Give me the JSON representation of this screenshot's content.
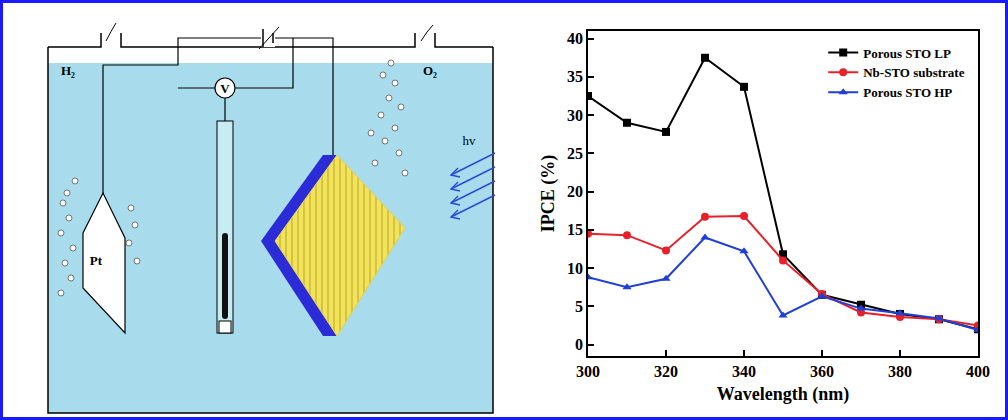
{
  "diagram": {
    "gas_left": "H₂",
    "gas_right": "O₂",
    "cathode": "Pt",
    "meter": "V",
    "light": "hv"
  },
  "chart_data": {
    "type": "line",
    "x_label": "Wavelength (nm)",
    "y_label": "IPCE (%)",
    "x": [
      300,
      310,
      320,
      330,
      340,
      350,
      360,
      370,
      380,
      390,
      400
    ],
    "series": [
      {
        "name": "Porous STO LP",
        "color": "#000000",
        "marker": "square",
        "line_style": "solid",
        "values": [
          32.5,
          29.0,
          27.8,
          37.5,
          33.7,
          11.8,
          6.5,
          5.2,
          4.0,
          3.3,
          2.0
        ]
      },
      {
        "name": "Nb-STO substrate",
        "color": "#e8202a",
        "marker": "circle",
        "line_style": "solid",
        "values": [
          14.5,
          14.3,
          12.3,
          16.7,
          16.8,
          11.0,
          6.6,
          4.2,
          3.6,
          3.3,
          2.5
        ]
      },
      {
        "name": "Porous STO HP",
        "color": "#1f3fd8",
        "marker": "triangle",
        "line_style": "solid",
        "values": [
          8.8,
          7.5,
          8.6,
          14.0,
          12.2,
          3.8,
          6.3,
          4.7,
          4.1,
          3.4,
          1.9
        ]
      }
    ],
    "xlim": [
      300,
      400
    ],
    "xticks": [
      300,
      320,
      340,
      360,
      380,
      400
    ],
    "ylim": [
      -1.5,
      41
    ],
    "yticks": [
      0,
      5,
      10,
      15,
      20,
      25,
      30,
      35,
      40
    ],
    "grid": false,
    "legend": "upper right"
  }
}
